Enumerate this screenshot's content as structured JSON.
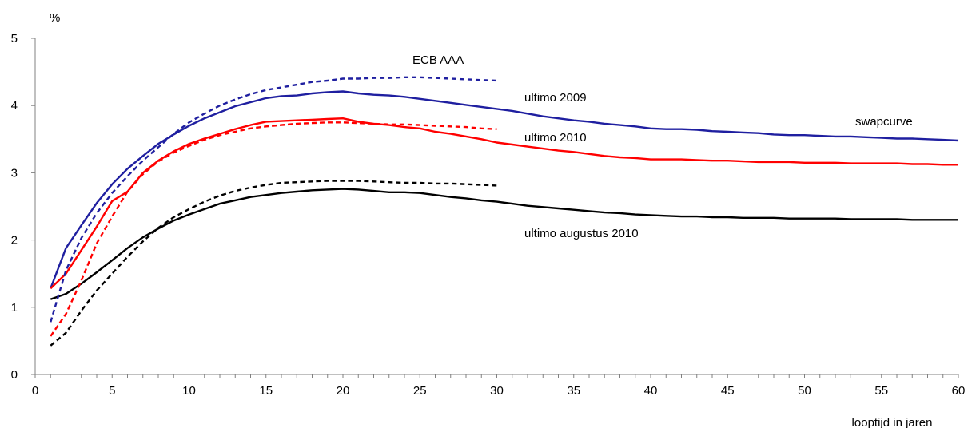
{
  "chart_data": {
    "type": "line",
    "ylabel": "%",
    "xlabel": "looptijd in jaren",
    "xlim": [
      0,
      60
    ],
    "ylim": [
      0,
      5
    ],
    "xticks": [
      "0",
      "5",
      "10",
      "15",
      "20",
      "25",
      "30",
      "35",
      "40",
      "45",
      "50",
      "55",
      "60"
    ],
    "yticks": [
      "0",
      "1",
      "2",
      "3",
      "4",
      "5"
    ],
    "grid": false,
    "legend": "none",
    "annotations": {
      "ecb": "ECB AAA",
      "u2009": "ultimo 2009",
      "u2010": "ultimo 2010",
      "swap": "swapcurve",
      "aug2010": "ultimo augustus 2010"
    },
    "series": [
      {
        "key": "u2009_swap",
        "color": "#1f1fa0",
        "dash": "none",
        "x": [
          1,
          2,
          3,
          4,
          5,
          6,
          7,
          8,
          9,
          10,
          11,
          12,
          13,
          14,
          15,
          16,
          17,
          18,
          19,
          20,
          21,
          22,
          23,
          24,
          25,
          26,
          27,
          28,
          29,
          30,
          31,
          32,
          33,
          34,
          35,
          36,
          37,
          38,
          39,
          40,
          41,
          42,
          43,
          44,
          45,
          46,
          47,
          48,
          49,
          50,
          51,
          52,
          53,
          54,
          55,
          56,
          57,
          58,
          59,
          60
        ],
        "y": [
          1.28,
          1.88,
          2.22,
          2.55,
          2.83,
          3.06,
          3.25,
          3.43,
          3.57,
          3.7,
          3.81,
          3.9,
          3.99,
          4.05,
          4.11,
          4.14,
          4.15,
          4.18,
          4.2,
          4.21,
          4.18,
          4.16,
          4.15,
          4.13,
          4.1,
          4.07,
          4.04,
          4.01,
          3.98,
          3.95,
          3.92,
          3.88,
          3.84,
          3.81,
          3.78,
          3.76,
          3.73,
          3.71,
          3.69,
          3.66,
          3.65,
          3.65,
          3.64,
          3.62,
          3.61,
          3.6,
          3.59,
          3.57,
          3.56,
          3.56,
          3.55,
          3.54,
          3.54,
          3.53,
          3.52,
          3.51,
          3.51,
          3.5,
          3.49,
          3.48
        ]
      },
      {
        "key": "u2010_swap",
        "color": "#ff0000",
        "dash": "none",
        "x": [
          1,
          2,
          3,
          4,
          5,
          6,
          7,
          8,
          9,
          10,
          11,
          12,
          13,
          14,
          15,
          16,
          17,
          18,
          19,
          20,
          21,
          22,
          23,
          24,
          25,
          26,
          27,
          28,
          29,
          30,
          31,
          32,
          33,
          34,
          35,
          36,
          37,
          38,
          39,
          40,
          41,
          42,
          43,
          44,
          45,
          46,
          47,
          48,
          49,
          50,
          51,
          52,
          53,
          54,
          55,
          56,
          57,
          58,
          59,
          60
        ],
        "y": [
          1.28,
          1.5,
          1.85,
          2.2,
          2.58,
          2.72,
          3.0,
          3.18,
          3.32,
          3.43,
          3.51,
          3.58,
          3.65,
          3.71,
          3.76,
          3.77,
          3.78,
          3.79,
          3.8,
          3.81,
          3.76,
          3.73,
          3.71,
          3.68,
          3.66,
          3.61,
          3.58,
          3.54,
          3.5,
          3.45,
          3.42,
          3.39,
          3.36,
          3.33,
          3.31,
          3.28,
          3.25,
          3.23,
          3.22,
          3.2,
          3.2,
          3.2,
          3.19,
          3.18,
          3.18,
          3.17,
          3.16,
          3.16,
          3.16,
          3.15,
          3.15,
          3.15,
          3.14,
          3.14,
          3.14,
          3.14,
          3.13,
          3.13,
          3.12,
          3.12
        ]
      },
      {
        "key": "aug2010_swap",
        "color": "#000000",
        "dash": "none",
        "x": [
          1,
          2,
          3,
          4,
          5,
          6,
          7,
          8,
          9,
          10,
          11,
          12,
          13,
          14,
          15,
          16,
          17,
          18,
          19,
          20,
          21,
          22,
          23,
          24,
          25,
          26,
          27,
          28,
          29,
          30,
          31,
          32,
          33,
          34,
          35,
          36,
          37,
          38,
          39,
          40,
          41,
          42,
          43,
          44,
          45,
          46,
          47,
          48,
          49,
          50,
          51,
          52,
          53,
          54,
          55,
          56,
          57,
          58,
          59,
          60
        ],
        "y": [
          1.12,
          1.2,
          1.35,
          1.52,
          1.7,
          1.88,
          2.04,
          2.17,
          2.29,
          2.38,
          2.46,
          2.54,
          2.59,
          2.64,
          2.67,
          2.7,
          2.72,
          2.74,
          2.75,
          2.76,
          2.75,
          2.73,
          2.71,
          2.71,
          2.7,
          2.67,
          2.64,
          2.62,
          2.59,
          2.57,
          2.54,
          2.51,
          2.49,
          2.47,
          2.45,
          2.43,
          2.41,
          2.4,
          2.38,
          2.37,
          2.36,
          2.35,
          2.35,
          2.34,
          2.34,
          2.33,
          2.33,
          2.33,
          2.32,
          2.32,
          2.32,
          2.32,
          2.31,
          2.31,
          2.31,
          2.31,
          2.3,
          2.3,
          2.3,
          2.3
        ]
      },
      {
        "key": "u2009_ecb",
        "color": "#1f1fa0",
        "dash": "6,4",
        "x": [
          1,
          2,
          3,
          4,
          5,
          6,
          7,
          8,
          9,
          10,
          11,
          12,
          13,
          14,
          15,
          16,
          17,
          18,
          19,
          20,
          21,
          22,
          23,
          24,
          25,
          26,
          27,
          28,
          29,
          30
        ],
        "y": [
          0.78,
          1.55,
          2.03,
          2.4,
          2.7,
          2.95,
          3.18,
          3.38,
          3.58,
          3.75,
          3.88,
          4.0,
          4.09,
          4.17,
          4.23,
          4.27,
          4.31,
          4.35,
          4.37,
          4.4,
          4.4,
          4.41,
          4.41,
          4.42,
          4.42,
          4.41,
          4.4,
          4.39,
          4.38,
          4.37
        ]
      },
      {
        "key": "u2010_ecb",
        "color": "#ff0000",
        "dash": "6,4",
        "x": [
          1,
          2,
          3,
          4,
          5,
          6,
          7,
          8,
          9,
          10,
          11,
          12,
          13,
          14,
          15,
          16,
          17,
          18,
          19,
          20,
          21,
          22,
          23,
          24,
          25,
          26,
          27,
          28,
          29,
          30
        ],
        "y": [
          0.57,
          0.9,
          1.4,
          1.95,
          2.35,
          2.72,
          2.98,
          3.17,
          3.3,
          3.4,
          3.49,
          3.56,
          3.61,
          3.66,
          3.69,
          3.71,
          3.73,
          3.74,
          3.75,
          3.75,
          3.74,
          3.73,
          3.72,
          3.72,
          3.71,
          3.7,
          3.69,
          3.68,
          3.66,
          3.65
        ]
      },
      {
        "key": "aug2010_ecb",
        "color": "#000000",
        "dash": "6,4",
        "x": [
          1,
          2,
          3,
          4,
          5,
          6,
          7,
          8,
          9,
          10,
          11,
          12,
          13,
          14,
          15,
          16,
          17,
          18,
          19,
          20,
          21,
          22,
          23,
          24,
          25,
          26,
          27,
          28,
          29,
          30
        ],
        "y": [
          0.43,
          0.62,
          0.95,
          1.25,
          1.5,
          1.75,
          1.98,
          2.18,
          2.34,
          2.46,
          2.57,
          2.66,
          2.73,
          2.78,
          2.82,
          2.85,
          2.86,
          2.87,
          2.88,
          2.88,
          2.88,
          2.87,
          2.86,
          2.85,
          2.85,
          2.84,
          2.84,
          2.83,
          2.82,
          2.81
        ]
      }
    ]
  }
}
